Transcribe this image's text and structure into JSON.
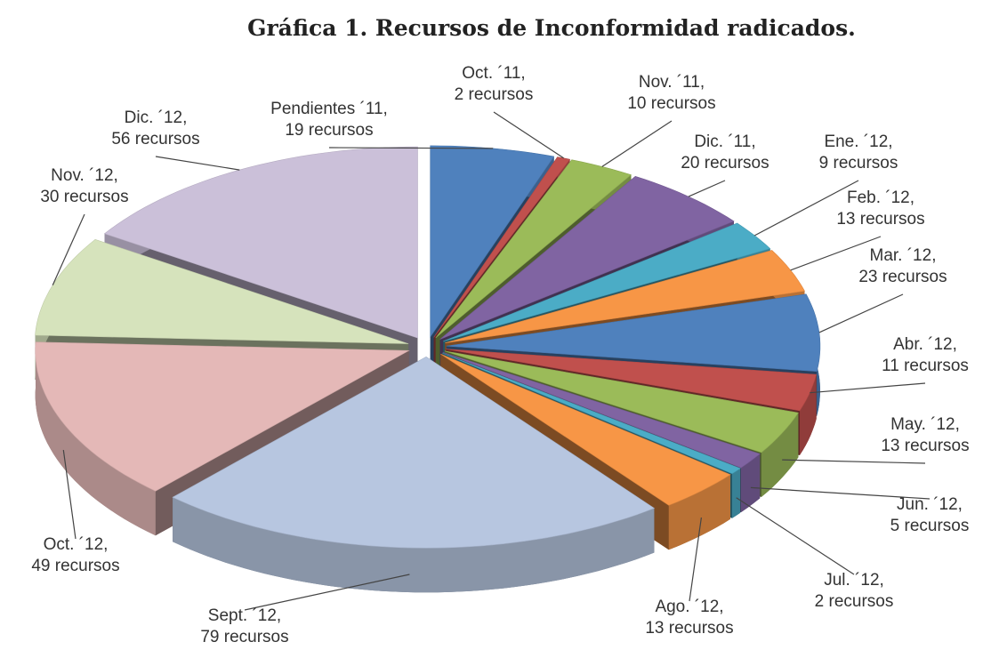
{
  "chart_data": {
    "type": "pie3d",
    "title": "Gráfica 1. Recursos de Inconformidad radicados.",
    "categories": [
      "Pendientes ´11,",
      "Oct. ´11,",
      "Nov. ´11,",
      "Dic. ´11,",
      "Ene. ´12,",
      "Feb. ´12,",
      "Mar. ´12,",
      "Abr. ´12,",
      "May. ´12,",
      "Jun. ´12,",
      "Jul. ´12,",
      "Ago. ´12,",
      "Sept. ´12,",
      "Oct. ´12,",
      "Nov. ´12,",
      "Dic. ´12,"
    ],
    "values": [
      19,
      2,
      10,
      20,
      9,
      13,
      23,
      11,
      13,
      5,
      2,
      13,
      79,
      49,
      30,
      56
    ],
    "value_labels": [
      "19 recursos",
      "2 recursos",
      "10 recursos",
      "20 recursos",
      "9 recursos",
      "13 recursos",
      "23 recursos",
      "11 recursos",
      "13 recursos",
      "5 recursos",
      "2 recursos",
      "13 recursos",
      "79 recursos",
      "49 recursos",
      "30 recursos",
      "56 recursos"
    ],
    "colors": [
      "#4f81bd",
      "#c0504d",
      "#9bbb59",
      "#8064a2",
      "#4bacc6",
      "#f79646",
      "#4f81bd",
      "#c0504d",
      "#9bbb59",
      "#8064a2",
      "#4bacc6",
      "#f79646",
      "#b7c6e0",
      "#e4b8b7",
      "#d6e3bc",
      "#cbc0d9"
    ]
  }
}
